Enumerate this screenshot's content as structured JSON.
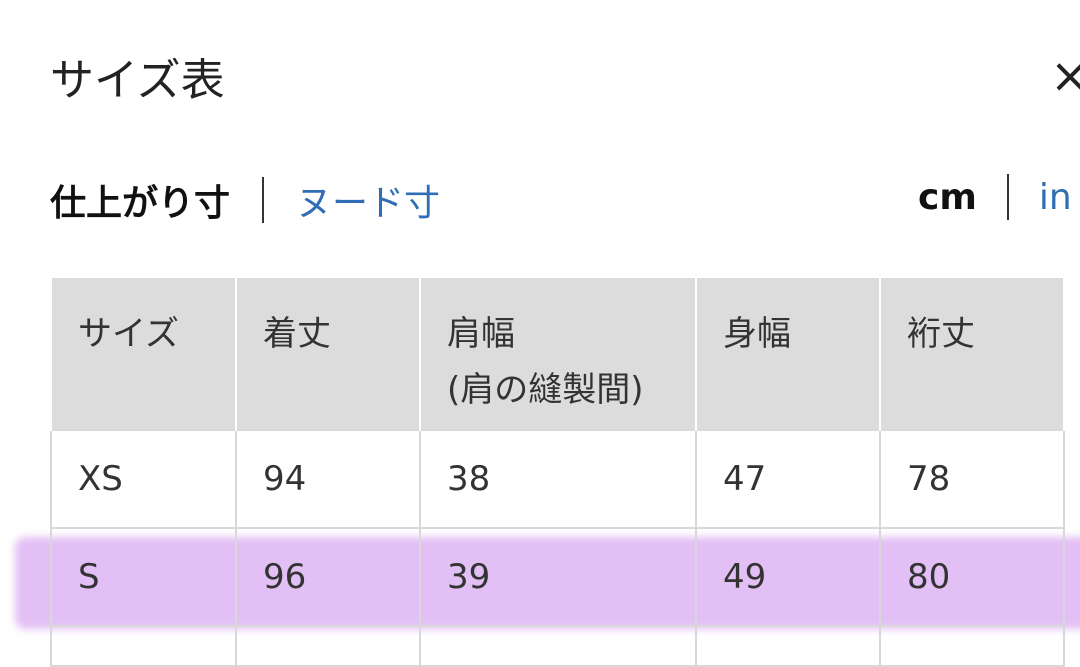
{
  "header": {
    "title": "サイズ表",
    "close_icon": "close-icon",
    "close_label": "×"
  },
  "tabs": [
    {
      "label": "仕上がり寸",
      "active": true
    },
    {
      "label": "ヌード寸",
      "active": false
    }
  ],
  "units": [
    {
      "label": "cm",
      "active": true
    },
    {
      "label": "in",
      "active": false
    }
  ],
  "table": {
    "headers": [
      "サイズ",
      "着丈",
      "肩幅",
      "身幅",
      "裄丈"
    ],
    "header_sub": "(肩の縫製間)",
    "rows": [
      [
        "XS",
        "94",
        "38",
        "47",
        "78"
      ],
      [
        "S",
        "96",
        "39",
        "49",
        "80"
      ]
    ]
  },
  "colors": {
    "highlight": "#e4c4f4",
    "link": "#2f6eb5",
    "header_bg": "#dcdcdc"
  }
}
